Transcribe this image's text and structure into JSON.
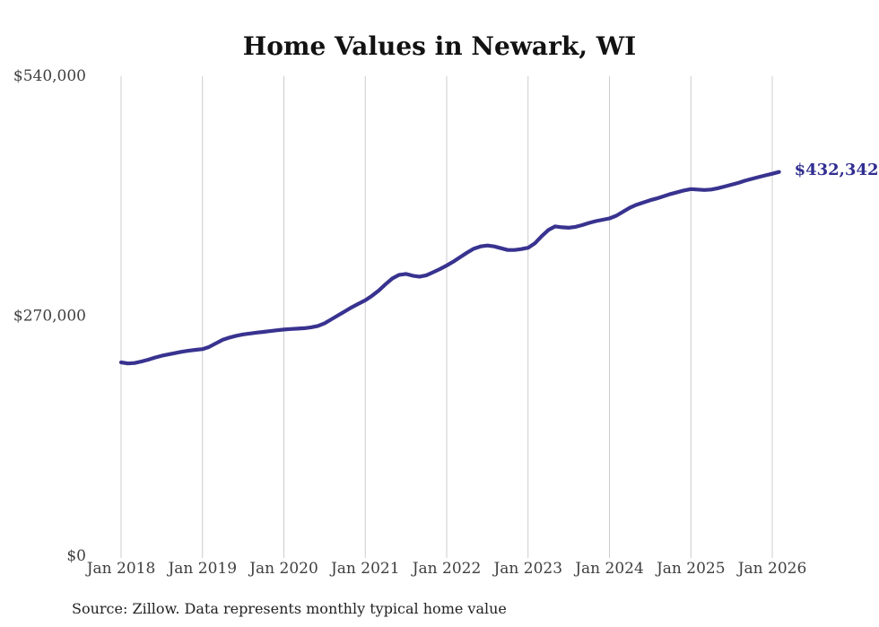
{
  "chart_data": {
    "type": "line",
    "title": "Home Values in Newark, WI",
    "source": "Source: Zillow. Data represents monthly typical home value",
    "end_label": "$432,342",
    "end_value": 432342,
    "ylim": [
      0,
      540000
    ],
    "grid": "vertical-only",
    "legend": "none",
    "colors": {
      "line": "#38338f",
      "end_label": "#312e91",
      "gridline": "#cccccc",
      "tick_label": "#3f3f3f",
      "title": "#121212",
      "source": "#222222",
      "background": "#ffffff"
    },
    "y_ticks": [
      {
        "label": "$540,000",
        "value": 540000
      },
      {
        "label": "$270,000",
        "value": 270000
      },
      {
        "label": "$0",
        "value": 0
      }
    ],
    "x_ticks": [
      "Jan 2018",
      "Jan 2019",
      "Jan 2020",
      "Jan 2021",
      "Jan 2022",
      "Jan 2023",
      "Jan 2024",
      "Jan 2025",
      "Jan 2026"
    ],
    "series": [
      {
        "name": "Monthly typical home value",
        "x": [
          "2018-01",
          "2018-02",
          "2018-03",
          "2018-04",
          "2018-05",
          "2018-06",
          "2018-07",
          "2018-08",
          "2018-09",
          "2018-10",
          "2018-11",
          "2018-12",
          "2019-01",
          "2019-02",
          "2019-03",
          "2019-04",
          "2019-05",
          "2019-06",
          "2019-07",
          "2019-08",
          "2019-09",
          "2019-10",
          "2019-11",
          "2019-12",
          "2020-01",
          "2020-02",
          "2020-03",
          "2020-04",
          "2020-05",
          "2020-06",
          "2020-07",
          "2020-08",
          "2020-09",
          "2020-10",
          "2020-11",
          "2020-12",
          "2021-01",
          "2021-02",
          "2021-03",
          "2021-04",
          "2021-05",
          "2021-06",
          "2021-07",
          "2021-08",
          "2021-09",
          "2021-10",
          "2021-11",
          "2021-12",
          "2022-01",
          "2022-02",
          "2022-03",
          "2022-04",
          "2022-05",
          "2022-06",
          "2022-07",
          "2022-08",
          "2022-09",
          "2022-10",
          "2022-11",
          "2022-12",
          "2023-01",
          "2023-02",
          "2023-03",
          "2023-04",
          "2023-05",
          "2023-06",
          "2023-07",
          "2023-08",
          "2023-09",
          "2023-10",
          "2023-11",
          "2023-12",
          "2024-01",
          "2024-02",
          "2024-03",
          "2024-04",
          "2024-05",
          "2024-06",
          "2024-07",
          "2024-08",
          "2024-09",
          "2024-10",
          "2024-11",
          "2024-12",
          "2025-01",
          "2025-02",
          "2025-03",
          "2025-04",
          "2025-05",
          "2025-06",
          "2025-07",
          "2025-08",
          "2025-09",
          "2025-10",
          "2025-11",
          "2025-12",
          "2026-01",
          "2026-02"
        ],
        "values": [
          218000,
          216800,
          217300,
          219000,
          221000,
          223500,
          225500,
          227000,
          228500,
          230000,
          231200,
          232200,
          233000,
          235500,
          239500,
          243500,
          246000,
          248000,
          249500,
          250500,
          251500,
          252300,
          253200,
          254200,
          255000,
          255600,
          256000,
          256500,
          257500,
          259000,
          262000,
          266500,
          271000,
          275500,
          280000,
          284000,
          288000,
          293000,
          299000,
          306000,
          312500,
          316500,
          317500,
          315500,
          314500,
          316000,
          319500,
          323000,
          327000,
          331500,
          336500,
          341500,
          346000,
          348500,
          349500,
          348500,
          346500,
          344500,
          344500,
          345500,
          347000,
          352000,
          360000,
          367000,
          371000,
          370000,
          369500,
          370500,
          372500,
          375000,
          377000,
          378500,
          380000,
          383000,
          387500,
          392000,
          395500,
          398000,
          400500,
          402500,
          405000,
          407500,
          409500,
          411500,
          413000,
          412500,
          412000,
          412500,
          414000,
          416000,
          418000,
          420000,
          422500,
          424500,
          426500,
          428500,
          430300,
          432342
        ]
      }
    ]
  }
}
